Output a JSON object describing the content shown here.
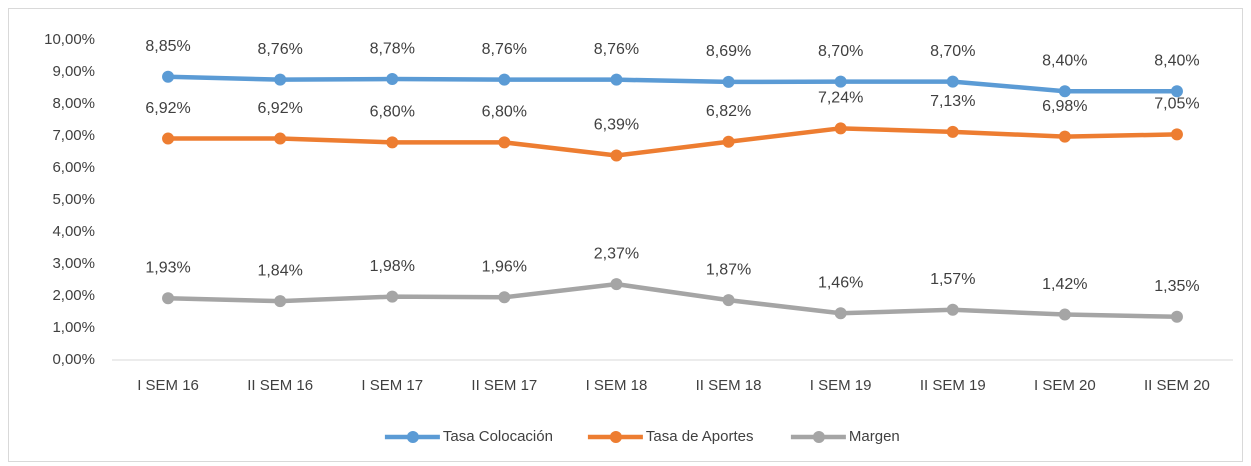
{
  "chart_data": {
    "type": "line",
    "categories": [
      "I SEM 16",
      "II SEM 16",
      "I SEM 17",
      "II SEM 17",
      "I SEM 18",
      "II SEM 18",
      "I SEM 19",
      "II SEM 19",
      "I SEM 20",
      "II SEM 20"
    ],
    "series": [
      {
        "name": "Tasa Colocación",
        "color": "#5b9bd5",
        "values": [
          8.85,
          8.76,
          8.78,
          8.76,
          8.76,
          8.69,
          8.7,
          8.7,
          8.4,
          8.4
        ],
        "value_labels": [
          "8,85%",
          "8,76%",
          "8,78%",
          "8,76%",
          "8,76%",
          "8,69%",
          "8,70%",
          "8,70%",
          "8,40%",
          "8,40%"
        ]
      },
      {
        "name": "Tasa de Aportes",
        "color": "#ed7d31",
        "values": [
          6.92,
          6.92,
          6.8,
          6.8,
          6.39,
          6.82,
          7.24,
          7.13,
          6.98,
          7.05
        ],
        "value_labels": [
          "6,92%",
          "6,92%",
          "6,80%",
          "6,80%",
          "6,39%",
          "6,82%",
          "7,24%",
          "7,13%",
          "6,98%",
          "7,05%"
        ]
      },
      {
        "name": "Margen",
        "color": "#a5a5a5",
        "values": [
          1.93,
          1.84,
          1.98,
          1.96,
          2.37,
          1.87,
          1.46,
          1.57,
          1.42,
          1.35
        ],
        "value_labels": [
          "1,93%",
          "1,84%",
          "1,98%",
          "1,96%",
          "2,37%",
          "1,87%",
          "1,46%",
          "1,57%",
          "1,42%",
          "1,35%"
        ]
      }
    ],
    "ylim": [
      0,
      10
    ],
    "yticks": [
      {
        "value": 0,
        "label": "0,00%"
      },
      {
        "value": 1,
        "label": "1,00%"
      },
      {
        "value": 2,
        "label": "2,00%"
      },
      {
        "value": 3,
        "label": "3,00%"
      },
      {
        "value": 4,
        "label": "4,00%"
      },
      {
        "value": 5,
        "label": "5,00%"
      },
      {
        "value": 6,
        "label": "6,00%"
      },
      {
        "value": 7,
        "label": "7,00%"
      },
      {
        "value": 8,
        "label": "8,00%"
      },
      {
        "value": 9,
        "label": "9,00%"
      },
      {
        "value": 10,
        "label": "10,00%"
      }
    ],
    "grid": false,
    "legend": "bottom"
  }
}
